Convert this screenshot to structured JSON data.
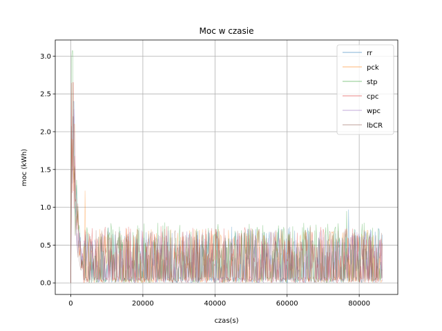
{
  "chart_data": {
    "type": "line",
    "title": "Moc w czasie",
    "xlabel": "czas(s)",
    "ylabel": "moc (kWh)",
    "xlim": [
      -4300,
      90700
    ],
    "ylim": [
      -0.153,
      3.213
    ],
    "xticks": [
      0,
      20000,
      40000,
      60000,
      80000
    ],
    "xtick_labels": [
      "0",
      "20000",
      "40000",
      "60000",
      "80000"
    ],
    "yticks": [
      0.0,
      0.5,
      1.0,
      1.5,
      2.0,
      2.5,
      3.0
    ],
    "ytick_labels": [
      "0.0",
      "0.5",
      "1.0",
      "1.5",
      "2.0",
      "2.5",
      "3.0"
    ],
    "grid": true,
    "legend_position": "top-right",
    "x_range": [
      0,
      86400
    ],
    "series": [
      {
        "name": "rr",
        "color": "#1f77b4",
        "initial_peak": 2.4,
        "peak_x": 800,
        "typical_max": 0.75,
        "notable_spikes": [
          {
            "x": 77000,
            "y": 0.97
          }
        ]
      },
      {
        "name": "pck",
        "color": "#ff7f0e",
        "initial_peak": 2.1,
        "peak_x": 1000,
        "typical_max": 0.72,
        "notable_spikes": [
          {
            "x": 4000,
            "y": 1.22
          }
        ]
      },
      {
        "name": "stp",
        "color": "#2ca02c",
        "initial_peak": 3.07,
        "peak_x": 500,
        "typical_max": 0.8,
        "notable_spikes": [
          {
            "x": 76500,
            "y": 0.95
          }
        ]
      },
      {
        "name": "cpc",
        "color": "#d62728",
        "initial_peak": 2.65,
        "peak_x": 700,
        "typical_max": 0.75,
        "notable_spikes": []
      },
      {
        "name": "wpc",
        "color": "#9467bd",
        "initial_peak": 2.3,
        "peak_x": 900,
        "typical_max": 0.7,
        "notable_spikes": []
      },
      {
        "name": "lbCR",
        "color": "#8c564b",
        "initial_peak": 2.2,
        "peak_x": 600,
        "typical_max": 0.7,
        "notable_spikes": []
      }
    ]
  }
}
